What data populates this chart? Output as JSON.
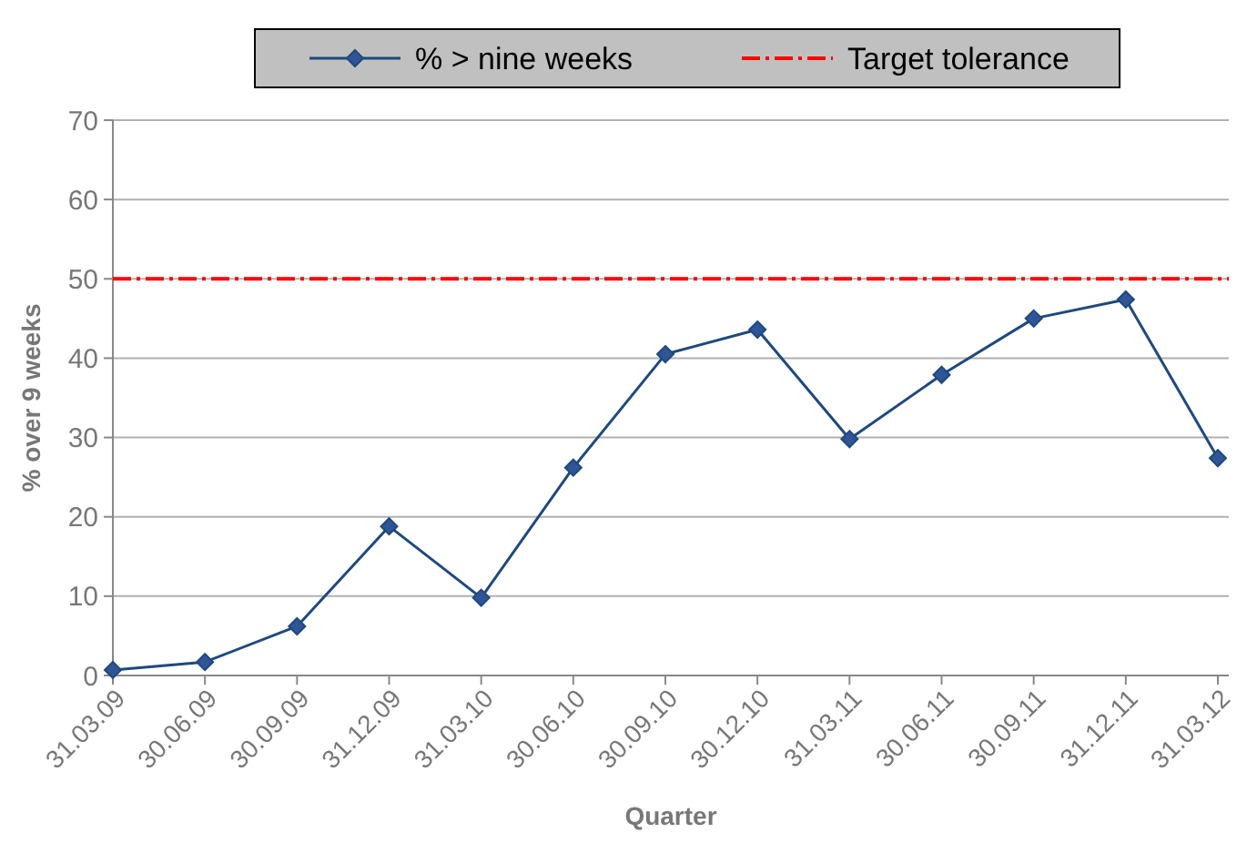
{
  "chart_data": {
    "type": "line",
    "xlabel": "Quarter",
    "ylabel": "% over 9 weeks",
    "categories": [
      "31.03.09",
      "30.06.09",
      "30.09.09",
      "31.12.09",
      "31.03.10",
      "30.06.10",
      "30.09.10",
      "30.12.10",
      "31.03.11",
      "30.06.11",
      "30.09.11",
      "31.12.11",
      "31.03.12"
    ],
    "series": [
      {
        "name": "% > nine weeks",
        "color": "#1f497d",
        "values": [
          0.7,
          1.7,
          6.2,
          18.8,
          9.8,
          26.2,
          40.5,
          43.6,
          29.8,
          37.9,
          45,
          47.4,
          27.4
        ]
      }
    ],
    "ylim": [
      0,
      70
    ],
    "yticks": [
      0,
      10,
      20,
      30,
      40,
      50,
      60,
      70
    ],
    "grid": "y",
    "legend": "top",
    "marker": "diamond",
    "line_style": "solid",
    "ref_lines": [
      {
        "axis": "y",
        "value": 50,
        "label": "Target tolerance",
        "color": "#ff0000",
        "line_style": "dashdot"
      }
    ]
  }
}
